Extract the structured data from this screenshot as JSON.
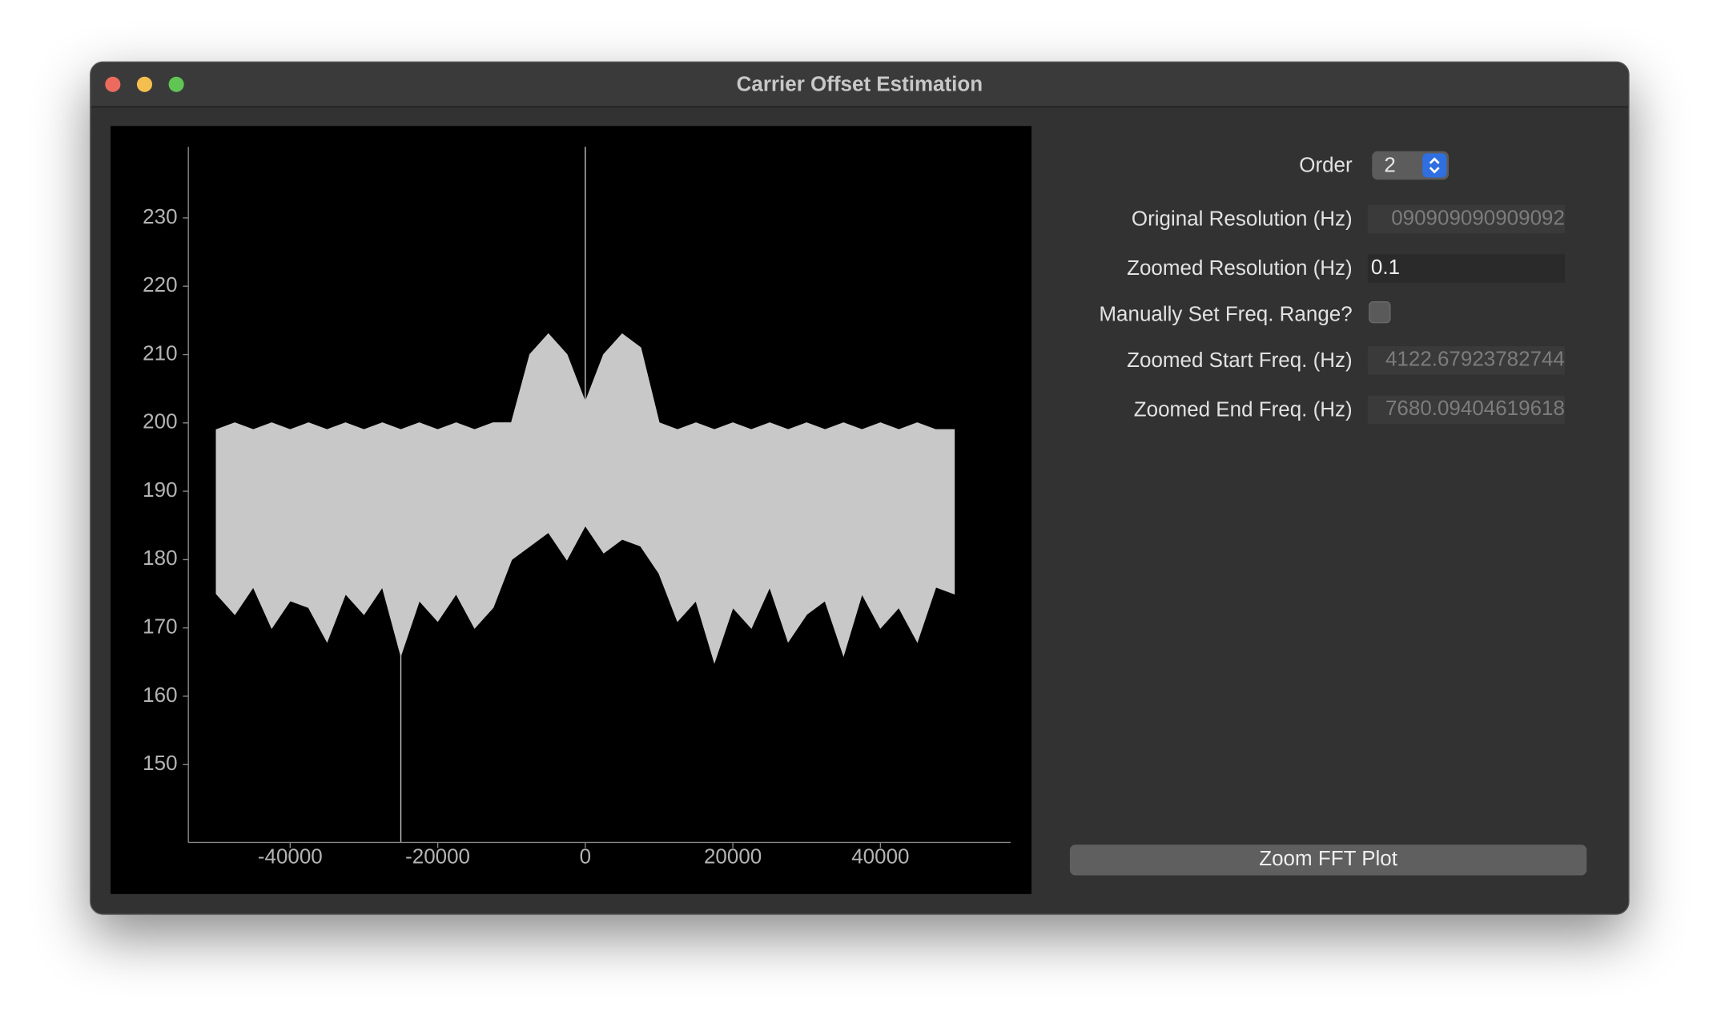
{
  "window": {
    "title": "Carrier Offset Estimation"
  },
  "form": {
    "order": {
      "label": "Order",
      "value": "2"
    },
    "original_resolution": {
      "label": "Original Resolution (Hz)",
      "value": "090909090909092"
    },
    "zoomed_resolution": {
      "label": "Zoomed Resolution (Hz)",
      "value": "0.1"
    },
    "manual_range": {
      "label": "Manually Set Freq. Range?"
    },
    "zoomed_start": {
      "label": "Zoomed Start Freq. (Hz)",
      "value": "4122.67923782744"
    },
    "zoomed_end": {
      "label": "Zoomed End Freq. (Hz)",
      "value": "7680.09404619618"
    },
    "button": "Zoom FFT Plot"
  },
  "chart_data": {
    "type": "band",
    "x": [
      -50000,
      -47500,
      -45000,
      -42500,
      -40000,
      -37500,
      -35000,
      -32500,
      -30000,
      -27500,
      -25000,
      -22500,
      -20000,
      -17500,
      -15000,
      -12500,
      -10000,
      -7500,
      -5000,
      -2500,
      0,
      2500,
      5000,
      7500,
      10000,
      12500,
      15000,
      17500,
      20000,
      22500,
      25000,
      27500,
      30000,
      32500,
      35000,
      37500,
      40000,
      42500,
      45000,
      47500,
      50000
    ],
    "series": [
      {
        "color": "#c8c8c8",
        "values": [
          199,
          200,
          199,
          200,
          199,
          200,
          199,
          200,
          199,
          200,
          199,
          200,
          199,
          200,
          199,
          200,
          200,
          210,
          213,
          210,
          203,
          210,
          213,
          211,
          200,
          199,
          200,
          199,
          200,
          199,
          200,
          199,
          200,
          199,
          200,
          199,
          200,
          199,
          200,
          199,
          199
        ]
      },
      {
        "color": "#c8c8c8",
        "values": [
          175,
          172,
          176,
          170,
          174,
          173,
          168,
          175,
          172,
          176,
          166,
          174,
          171,
          175,
          170,
          173,
          180,
          182,
          184,
          180,
          185,
          181,
          183,
          182,
          178,
          171,
          174,
          165,
          173,
          170,
          176,
          168,
          172,
          174,
          166,
          175,
          170,
          173,
          168,
          176,
          175
        ]
      }
    ],
    "spikes": {
      "x": [
        0,
        -25000
      ],
      "values": [
        240.4,
        138.6
      ]
    },
    "xlim": [
      -53800,
      57660
    ],
    "ylim": [
      138.6,
      240.4
    ],
    "xticks": [
      -40000,
      -20000,
      0,
      20000,
      40000
    ],
    "yticks": [
      150,
      160,
      170,
      180,
      190,
      200,
      210,
      220,
      230
    ]
  }
}
